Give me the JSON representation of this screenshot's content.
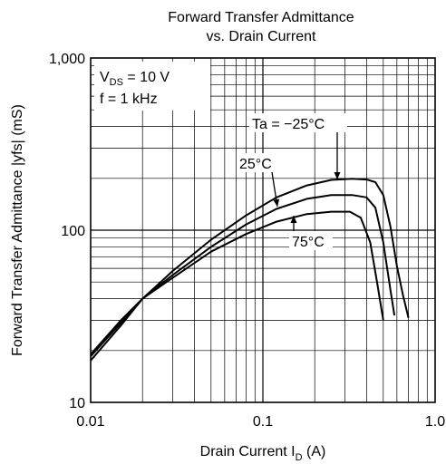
{
  "chart_data": {
    "type": "line",
    "title_line1": "Forward Transfer Admittance",
    "title_line2": "vs. Drain Current",
    "xlabel": "Drain Current  I",
    "xlabel_sub": "D",
    "xlabel_unit": "  (A)",
    "ylabel": "Forward Transfer Admittance  |yfs|  (mS)",
    "x_scale": "log",
    "y_scale": "log",
    "xlim": [
      0.01,
      1.0
    ],
    "ylim": [
      10,
      1000
    ],
    "x_tick_labels": [
      "0.01",
      "0.1",
      "1.0"
    ],
    "y_tick_labels": [
      "10",
      "100",
      "1,000"
    ],
    "grid": true,
    "conditions": {
      "vds_prefix": "V",
      "vds_sub": "DS",
      "vds_value": " = 10 V",
      "freq": "f = 1 kHz"
    },
    "series": [
      {
        "name": "Ta = −25°C",
        "x": [
          0.01,
          0.015,
          0.02,
          0.03,
          0.05,
          0.08,
          0.12,
          0.18,
          0.25,
          0.33,
          0.4,
          0.45,
          0.5,
          0.55,
          0.6,
          0.65,
          0.7
        ],
        "y": [
          19,
          30,
          40,
          58,
          88,
          122,
          155,
          182,
          196,
          199,
          197,
          190,
          160,
          105,
          62,
          42,
          31
        ]
      },
      {
        "name": "25°C",
        "x": [
          0.01,
          0.015,
          0.02,
          0.03,
          0.05,
          0.08,
          0.12,
          0.18,
          0.25,
          0.33,
          0.4,
          0.45,
          0.5,
          0.55,
          0.58
        ],
        "y": [
          18.5,
          29,
          40,
          55,
          80,
          108,
          133,
          152,
          160,
          160,
          155,
          135,
          85,
          45,
          32
        ]
      },
      {
        "name": "75°C",
        "x": [
          0.01,
          0.015,
          0.02,
          0.03,
          0.05,
          0.08,
          0.12,
          0.18,
          0.25,
          0.32,
          0.37,
          0.42,
          0.46,
          0.5
        ],
        "y": [
          17.5,
          28,
          40,
          53,
          75,
          95,
          112,
          124,
          128,
          128,
          118,
          85,
          50,
          30
        ]
      }
    ],
    "annotations": [
      {
        "label": "Ta = −25°C",
        "series": 0
      },
      {
        "label": "25°C",
        "series": 1
      },
      {
        "label": "75°C",
        "series": 2
      }
    ]
  }
}
